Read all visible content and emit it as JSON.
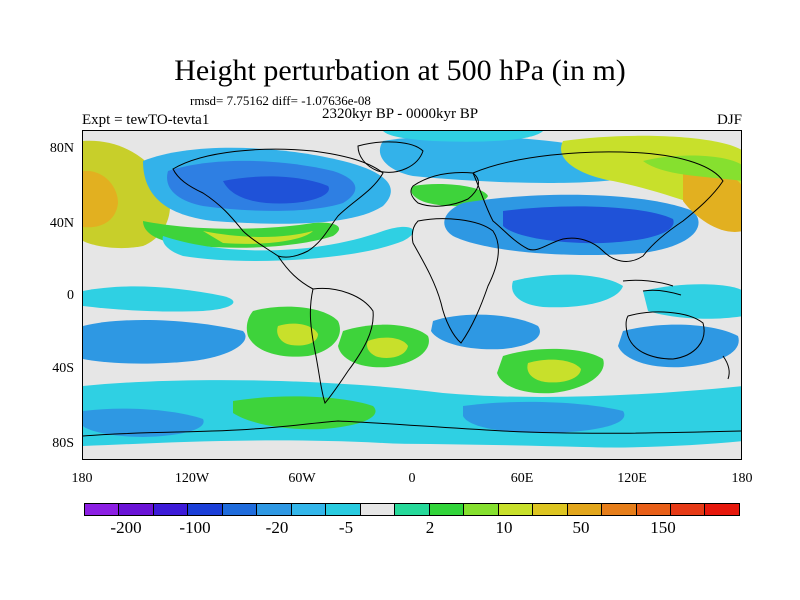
{
  "title": "Height perturbation at 500 hPa (in m)",
  "stats": "rmsd= 7.75162 diff= -1.07636e-08",
  "period": "2320kyr BP - 0000kyr BP",
  "experiment": "Expt = tewTO-tevta1",
  "season": "DJF",
  "axes": {
    "y_ticks": [
      "80N",
      "40N",
      "0",
      "40S",
      "80S"
    ],
    "x_ticks": [
      "180",
      "120W",
      "60W",
      "0",
      "60E",
      "120E",
      "180"
    ]
  },
  "colorbar": {
    "colors": [
      "#8c1fe3",
      "#6a13d6",
      "#3d1bd8",
      "#1b3fd8",
      "#1f6cdc",
      "#2e98e3",
      "#33b6ea",
      "#29cbe0",
      "#e6e6e6",
      "#26d99a",
      "#32d43a",
      "#86e02f",
      "#c8e02b",
      "#ddc521",
      "#e2a61c",
      "#e67e1a",
      "#e85f18",
      "#e63a16",
      "#e6180c"
    ],
    "labels": [
      "-200",
      "-100",
      "-20",
      "-5",
      "2",
      "10",
      "50",
      "150"
    ]
  },
  "legend_colors": {
    "deep_blue": "#1f52d8",
    "blue": "#2e7fe3",
    "light_blue": "#33b2ea",
    "cyan": "#2fd0e3",
    "neutral": "#e6e6e6",
    "teal": "#2ed9a0",
    "green": "#3ed33b",
    "yellow_green": "#9ddc2b",
    "yellow": "#d8cf26",
    "orange": "#e2a61c"
  }
}
